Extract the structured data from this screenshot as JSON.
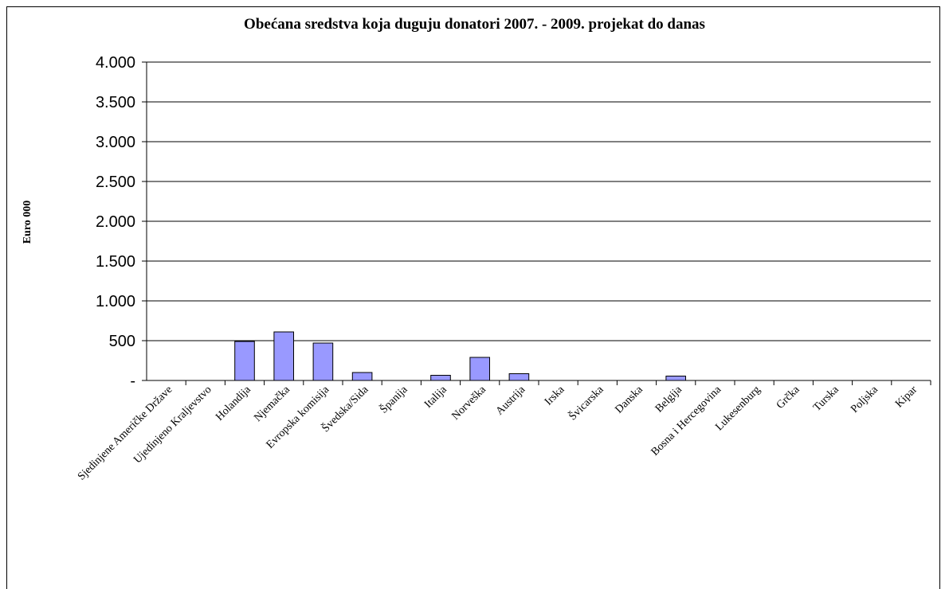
{
  "chart_data": {
    "type": "bar",
    "title": "Obećana sredstva koja duguju donatori 2007. - 2009. projekat do danas",
    "ylabel": "Euro 000",
    "xlabel": "",
    "ylim": [
      0,
      4000
    ],
    "yticks": [
      {
        "value": 0,
        "label": "-"
      },
      {
        "value": 500,
        "label": "500"
      },
      {
        "value": 1000,
        "label": "1.000"
      },
      {
        "value": 1500,
        "label": "1.500"
      },
      {
        "value": 2000,
        "label": "2.000"
      },
      {
        "value": 2500,
        "label": "2.500"
      },
      {
        "value": 3000,
        "label": "3.000"
      },
      {
        "value": 3500,
        "label": "3.500"
      },
      {
        "value": 4000,
        "label": "4.000"
      }
    ],
    "grid": true,
    "legend": "none",
    "bar_color": "#9999ff",
    "categories": [
      "Sjedinjene Američke Države",
      "Ujedinjeno Kraljevstvo",
      "Holandija",
      "Njemačka",
      "Evropska komisija",
      "Švedska/Sida",
      "Španija",
      "Italija",
      "Norveška",
      "Austrija",
      "Irska",
      "Švicarska",
      "Danska",
      "Belgija",
      "Bosna i Hercegovina",
      "Lukesenburg",
      "Grčka",
      "Turska",
      "Poljska",
      "Kipar"
    ],
    "values": [
      0,
      0,
      490,
      610,
      470,
      100,
      0,
      65,
      290,
      85,
      0,
      0,
      0,
      55,
      0,
      0,
      0,
      0,
      0,
      0
    ]
  }
}
